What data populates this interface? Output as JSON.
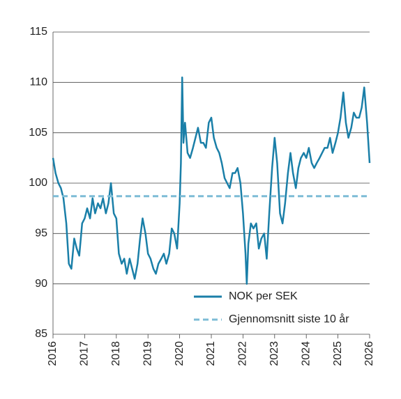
{
  "chart_data": {
    "type": "line",
    "xlim": [
      2016,
      2026
    ],
    "xticks": [
      2016,
      2017,
      2018,
      2019,
      2020,
      2021,
      2022,
      2023,
      2024,
      2025,
      2026
    ],
    "ylim": [
      85,
      115
    ],
    "yticks": [
      85,
      90,
      95,
      100,
      105,
      110,
      115
    ],
    "grid": true,
    "legend": "lower right",
    "series": [
      {
        "name": "NOK per SEK",
        "color": "#1a7fa8",
        "dashed": false,
        "x": [
          2016,
          2016.08,
          2016.17,
          2016.25,
          2016.33,
          2016.42,
          2016.5,
          2016.58,
          2016.67,
          2016.75,
          2016.83,
          2016.92,
          2017,
          2017.08,
          2017.17,
          2017.25,
          2017.33,
          2017.42,
          2017.5,
          2017.58,
          2017.67,
          2017.75,
          2017.83,
          2017.92,
          2018,
          2018.08,
          2018.17,
          2018.25,
          2018.33,
          2018.42,
          2018.5,
          2018.58,
          2018.67,
          2018.75,
          2018.83,
          2018.92,
          2019,
          2019.08,
          2019.17,
          2019.25,
          2019.33,
          2019.42,
          2019.5,
          2019.58,
          2019.67,
          2019.75,
          2019.83,
          2019.92,
          2020,
          2020.04,
          2020.08,
          2020.12,
          2020.17,
          2020.25,
          2020.33,
          2020.42,
          2020.5,
          2020.58,
          2020.67,
          2020.75,
          2020.83,
          2020.92,
          2021,
          2021.08,
          2021.17,
          2021.25,
          2021.33,
          2021.42,
          2021.5,
          2021.58,
          2021.67,
          2021.75,
          2021.83,
          2021.92,
          2022,
          2022.08,
          2022.12,
          2022.17,
          2022.25,
          2022.33,
          2022.42,
          2022.5,
          2022.58,
          2022.67,
          2022.75,
          2022.83,
          2022.92,
          2023,
          2023.08,
          2023.17,
          2023.25,
          2023.33,
          2023.42,
          2023.5,
          2023.58,
          2023.67,
          2023.75,
          2023.83,
          2023.92,
          2024,
          2024.08,
          2024.17,
          2024.25,
          2024.33,
          2024.42,
          2024.5,
          2024.58,
          2024.67,
          2024.75,
          2024.83,
          2024.92,
          2025,
          2025.08,
          2025.17,
          2025.25,
          2025.33,
          2025.42,
          2025.5,
          2025.58,
          2025.67,
          2025.75,
          2025.83,
          2025.92,
          2026
        ],
        "values": [
          102.5,
          101,
          100,
          99.5,
          98.5,
          96,
          92,
          91.5,
          94.5,
          93.5,
          92.8,
          96,
          96.5,
          97.5,
          96.5,
          98.5,
          97,
          98,
          97.5,
          98.5,
          97,
          98,
          100,
          97,
          96.5,
          93,
          92,
          92.5,
          91,
          92.5,
          91.5,
          90.5,
          92,
          94.5,
          96.5,
          95,
          93,
          92.5,
          91.5,
          91,
          92,
          92.5,
          93,
          92,
          93,
          95.5,
          95,
          93.5,
          98,
          102,
          110.5,
          104,
          106,
          103,
          102.5,
          103.5,
          104.5,
          105.5,
          104,
          104,
          103.5,
          106,
          106.5,
          104.5,
          103.5,
          103,
          102,
          100.5,
          100,
          99.5,
          101,
          101,
          101.5,
          100,
          97,
          93,
          90,
          94,
          96,
          95.5,
          96,
          93.5,
          94.5,
          95,
          92.5,
          97,
          101.5,
          104.5,
          102,
          97,
          96,
          98,
          101,
          103,
          101,
          99.5,
          101.5,
          102.5,
          103,
          102.5,
          103.5,
          102,
          101.5,
          102,
          102.5,
          103,
          103.5,
          103.5,
          104.5,
          103,
          104,
          105,
          106.5,
          109,
          106,
          104.5,
          105.5,
          107,
          106.5,
          106.5,
          107.5,
          109.5,
          106,
          102
        ]
      },
      {
        "name": "Gjennomsnitt siste 10 år",
        "color": "#7dbcd6",
        "dashed": true,
        "x": [
          2016,
          2026
        ],
        "values": [
          98.7,
          98.7
        ]
      }
    ]
  }
}
